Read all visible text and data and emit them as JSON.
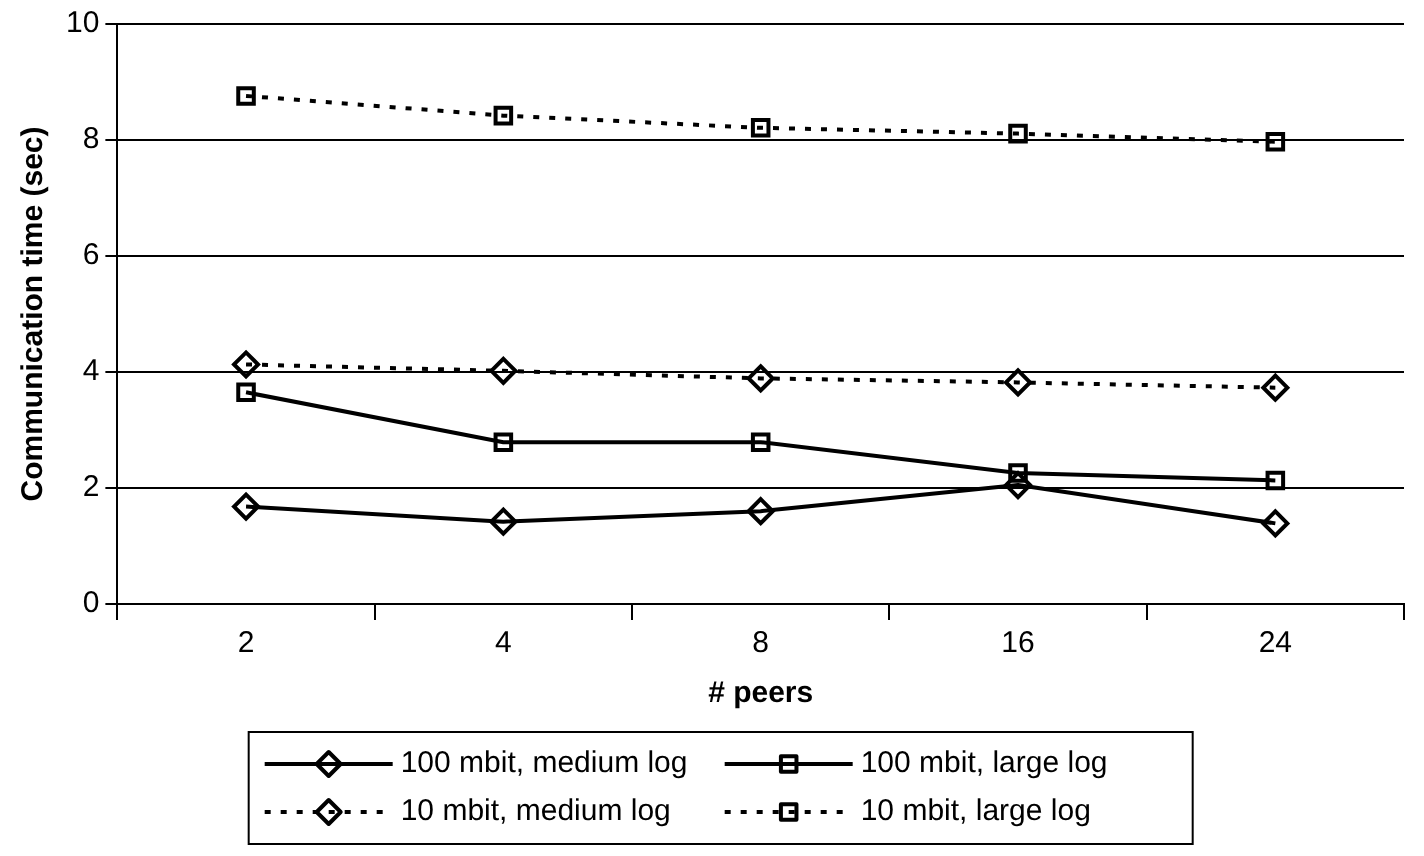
{
  "chart_data": {
    "type": "line",
    "xlabel": "# peers",
    "ylabel": "Communication time (sec)",
    "categories": [
      "2",
      "4",
      "8",
      "16",
      "24"
    ],
    "ylim": [
      0,
      10
    ],
    "yticks": [
      0,
      2,
      4,
      6,
      8,
      10
    ],
    "grid": "y",
    "legend": "bottom",
    "series": [
      {
        "name": "100 mbit, medium log",
        "color": "#000000",
        "marker": "diamond",
        "line_style": "solid",
        "values": [
          1.68,
          1.42,
          1.6,
          2.05,
          1.39
        ]
      },
      {
        "name": "100 mbit, large log",
        "color": "#000000",
        "marker": "square",
        "line_style": "solid",
        "values": [
          3.65,
          2.79,
          2.79,
          2.26,
          2.13
        ]
      },
      {
        "name": "10 mbit, medium log",
        "color": "#000000",
        "marker": "diamond",
        "line_style": "dotted",
        "values": [
          4.13,
          4.02,
          3.89,
          3.82,
          3.73
        ]
      },
      {
        "name": "10 mbit, large log",
        "color": "#000000",
        "marker": "square",
        "line_style": "dotted",
        "values": [
          8.76,
          8.42,
          8.21,
          8.11,
          7.97
        ]
      }
    ]
  }
}
